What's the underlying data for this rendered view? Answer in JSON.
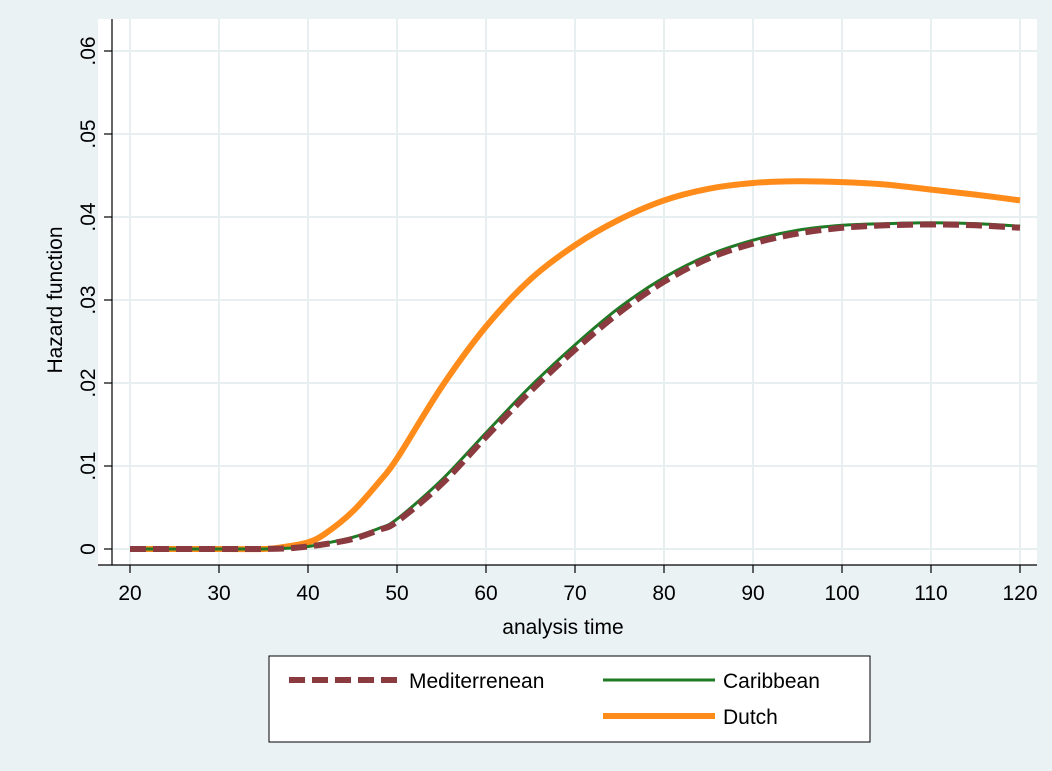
{
  "chart_data": {
    "type": "line",
    "xlabel": "analysis time",
    "ylabel": "Hazard function",
    "xlim": [
      20,
      120
    ],
    "ylim": [
      0,
      0.06
    ],
    "xticks": [
      20,
      30,
      40,
      50,
      60,
      70,
      80,
      90,
      100,
      110,
      120
    ],
    "yticks": [
      0,
      0.01,
      0.02,
      0.03,
      0.04,
      0.05,
      0.06
    ],
    "xtick_labels": [
      "20",
      "30",
      "40",
      "50",
      "60",
      "70",
      "80",
      "90",
      "100",
      "110",
      "120"
    ],
    "ytick_labels": [
      "0",
      ".01",
      ".02",
      ".03",
      ".04",
      ".05",
      ".06"
    ],
    "grid": true,
    "legend_position": "bottom",
    "series": [
      {
        "name": "Mediterrenean",
        "color": "#8b3a3f",
        "style": "dashed",
        "x": [
          20,
          30,
          35,
          38,
          40,
          42,
          45,
          48,
          50,
          55,
          60,
          65,
          70,
          75,
          80,
          85,
          90,
          95,
          100,
          105,
          110,
          115,
          120
        ],
        "y": [
          0,
          0,
          0,
          0.0001,
          0.0003,
          0.0006,
          0.0012,
          0.0023,
          0.0033,
          0.0078,
          0.0135,
          0.019,
          0.024,
          0.0285,
          0.0322,
          0.035,
          0.0368,
          0.038,
          0.0387,
          0.039,
          0.0391,
          0.039,
          0.0387
        ]
      },
      {
        "name": "Caribbean",
        "color": "#1e7a24",
        "style": "solid",
        "x": [
          20,
          30,
          35,
          38,
          40,
          42,
          45,
          48,
          50,
          55,
          60,
          65,
          70,
          75,
          80,
          85,
          90,
          95,
          100,
          105,
          110,
          115,
          120
        ],
        "y": [
          0,
          0,
          0,
          0.0001,
          0.0003,
          0.0007,
          0.0014,
          0.0025,
          0.0036,
          0.0083,
          0.014,
          0.0196,
          0.0246,
          0.0291,
          0.0327,
          0.0354,
          0.0372,
          0.0384,
          0.039,
          0.0392,
          0.0393,
          0.0392,
          0.0389
        ]
      },
      {
        "name": "Dutch",
        "color": "#ff8c1a",
        "style": "solid",
        "x": [
          20,
          30,
          35,
          37,
          40,
          42,
          45,
          48,
          50,
          55,
          60,
          65,
          70,
          75,
          80,
          85,
          90,
          95,
          100,
          105,
          110,
          115,
          120
        ],
        "y": [
          0,
          0,
          0,
          0.0002,
          0.0008,
          0.0019,
          0.0045,
          0.0081,
          0.0109,
          0.0195,
          0.0268,
          0.0325,
          0.0366,
          0.0397,
          0.042,
          0.0434,
          0.0441,
          0.0443,
          0.0442,
          0.0439,
          0.0433,
          0.0427,
          0.042
        ]
      }
    ]
  }
}
